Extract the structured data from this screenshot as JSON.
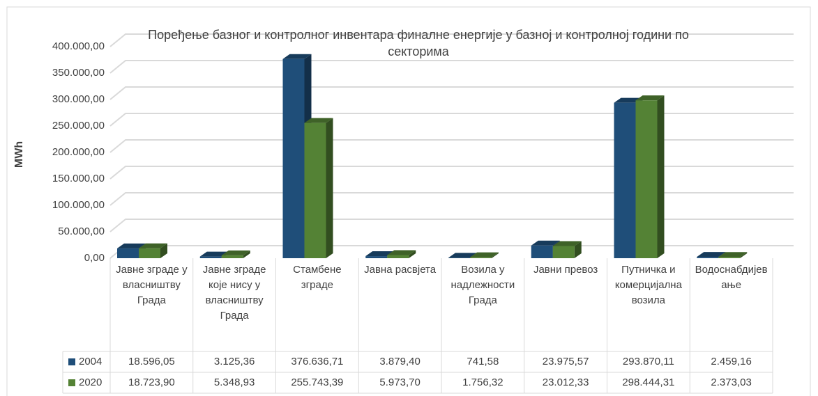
{
  "chart_data": {
    "type": "bar3d",
    "title": "Поређење базног и контролног инвентара финалне енергије у базној и контролној години по секторима",
    "ylabel": "MWh",
    "categories": [
      "Јавне зграде у власништву Града",
      "Јавне зграде које нису у власништву Града",
      "Стамбене зграде",
      "Јавна расвјета",
      "Возила у надлежности Града",
      "Јавни превоз",
      "Путничка и комерцијална возила",
      "Водоснабдијевање"
    ],
    "series": [
      {
        "name": "2004",
        "color": "#1f4e79",
        "values": [
          18596.05,
          3125.36,
          376636.71,
          3879.4,
          741.58,
          23975.57,
          293870.11,
          2459.16
        ],
        "value_labels": [
          "18.596,05",
          "3.125,36",
          "376.636,71",
          "3.879,40",
          "741,58",
          "23.975,57",
          "293.870,11",
          "2.459,16"
        ]
      },
      {
        "name": "2020",
        "color": "#548235",
        "values": [
          18723.9,
          5348.93,
          255743.39,
          5973.7,
          1756.32,
          23012.33,
          298444.31,
          2373.03
        ],
        "value_labels": [
          "18.723,90",
          "5.348,93",
          "255.743,39",
          "5.973,70",
          "1.756,32",
          "23.012,33",
          "298.444,31",
          "2.373,03"
        ]
      }
    ],
    "ylim": [
      0,
      400000
    ],
    "yticks": [
      {
        "value": 0,
        "label": "0,00"
      },
      {
        "value": 50000,
        "label": "50.000,00"
      },
      {
        "value": 100000,
        "label": "100.000,00"
      },
      {
        "value": 150000,
        "label": "150.000,00"
      },
      {
        "value": 200000,
        "label": "200.000,00"
      },
      {
        "value": 250000,
        "label": "250.000,00"
      },
      {
        "value": 300000,
        "label": "300.000,00"
      },
      {
        "value": 350000,
        "label": "350.000,00"
      },
      {
        "value": 400000,
        "label": "400.000,00"
      }
    ],
    "grid": true
  }
}
